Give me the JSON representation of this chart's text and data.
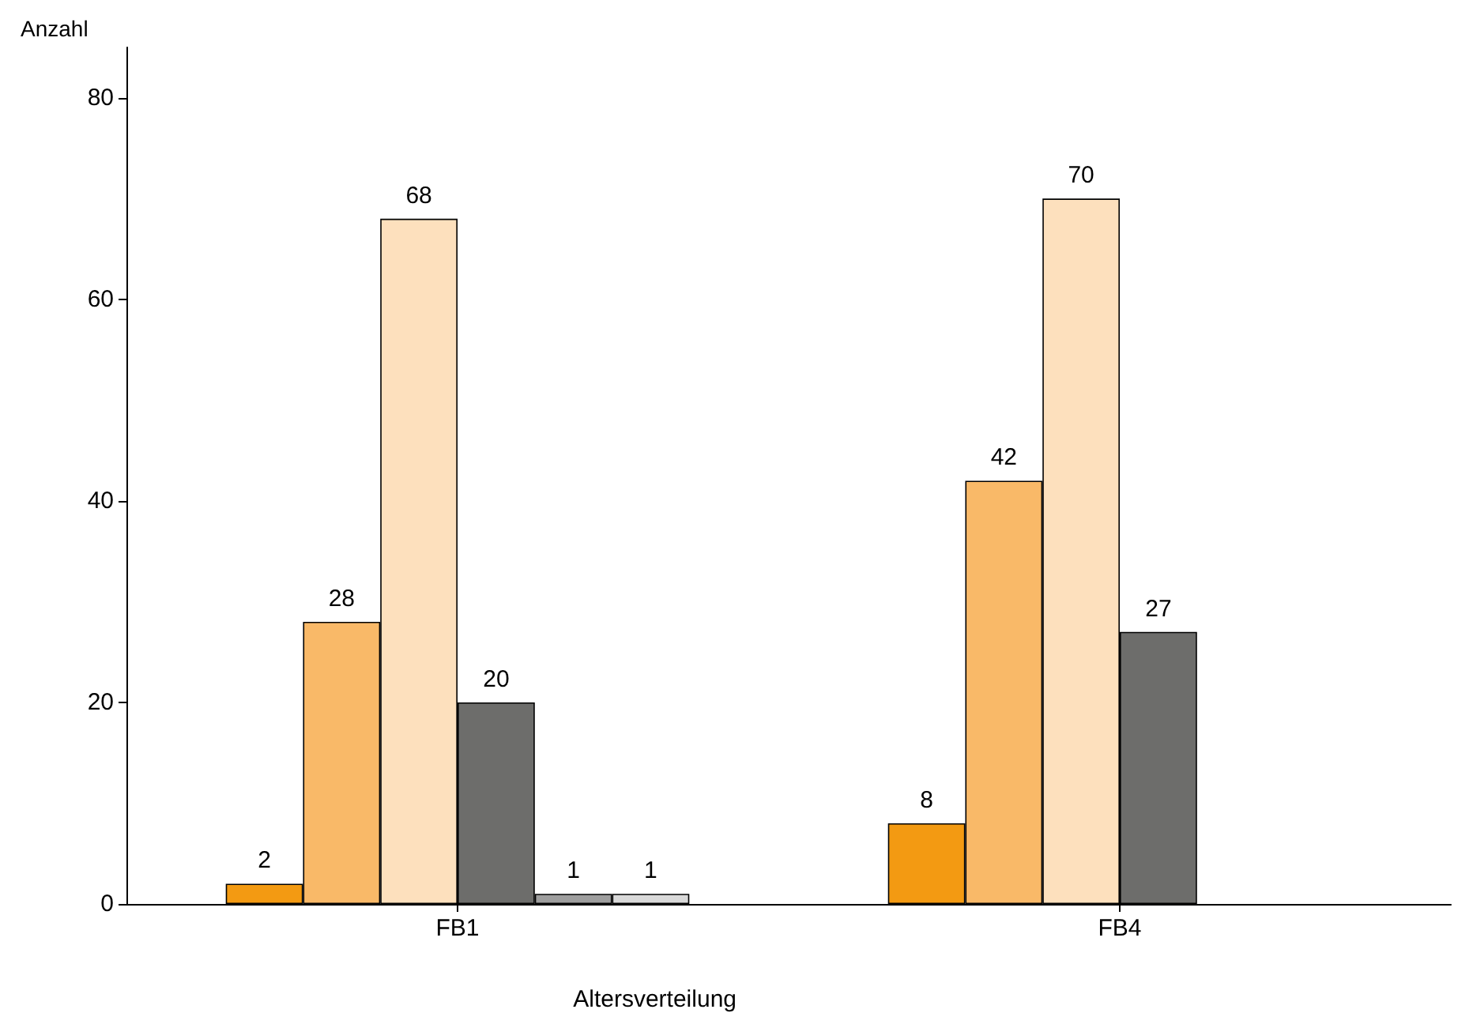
{
  "chart_data": {
    "type": "bar",
    "ylabel": "Anzahl",
    "xlabel": "Altersverteilung",
    "categories": [
      "FB1",
      "FB4"
    ],
    "series": [
      {
        "color": "#f39a12",
        "values": [
          2,
          8
        ]
      },
      {
        "color": "#f9b968",
        "values": [
          28,
          42
        ]
      },
      {
        "color": "#fde0bd",
        "values": [
          68,
          70
        ]
      },
      {
        "color": "#6d6d6b",
        "values": [
          20,
          27
        ]
      },
      {
        "color": "#9e9e9e",
        "values": [
          1,
          null
        ]
      },
      {
        "color": "#d9d9d9",
        "values": [
          1,
          null
        ]
      }
    ],
    "ylim": [
      0,
      85
    ],
    "yticks": [
      0,
      20,
      40,
      60,
      80
    ],
    "grid": false,
    "data_labels": true
  }
}
